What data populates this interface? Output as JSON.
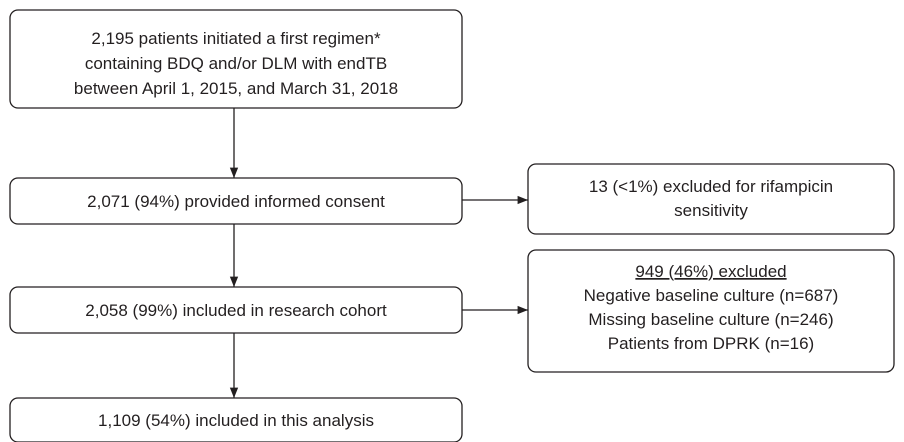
{
  "nodes": [
    {
      "lines": [
        "2,195 patients initiated a first regimen*",
        "containing BDQ and/or DLM with endTB",
        "between April 1, 2015, and March 31, 2018"
      ]
    },
    {
      "lines": [
        "2,071 (94%) provided informed consent"
      ]
    },
    {
      "lines": [
        "2,058 (99%) included in research cohort"
      ]
    },
    {
      "lines": [
        "1,109 (54%) included in this analysis"
      ]
    },
    {
      "lines": [
        "13 (<1%) excluded for rifampicin",
        "sensitivity"
      ]
    },
    {
      "lines": [
        "949 (46%) excluded",
        "Negative baseline culture (n=687)",
        "Missing baseline culture (n=246)",
        "Patients from DPRK (n=16)"
      ]
    }
  ]
}
